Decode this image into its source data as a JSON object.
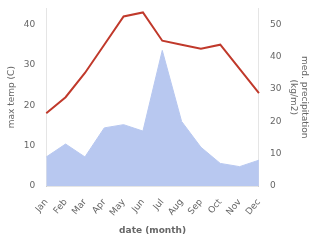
{
  "chart_data": {
    "type": "line",
    "xlabel": "date (month)",
    "ylabel": "max temp (C)",
    "y2label": "med. precipitation\n(kg/m2)",
    "categories": [
      "Jan",
      "Feb",
      "Mar",
      "Apr",
      "May",
      "Jun",
      "Jul",
      "Aug",
      "Sep",
      "Oct",
      "Nov",
      "Dec"
    ],
    "series": [
      {
        "type": "line",
        "color": "#c0392b",
        "values": [
          18,
          22,
          28,
          35,
          42,
          43,
          36,
          35,
          34,
          35,
          29,
          23
        ]
      },
      {
        "type": "area",
        "color": "#b8c8f0",
        "axis": "y2",
        "values": [
          9,
          13,
          9,
          18,
          19,
          17,
          42,
          20,
          12,
          7,
          6,
          8
        ]
      }
    ],
    "ylim": [
      0,
      44
    ],
    "yticks": [
      0,
      10,
      20,
      30,
      40
    ],
    "y2lim": [
      0,
      55
    ],
    "y2ticks": [
      0,
      10,
      20,
      30,
      40,
      50
    ],
    "grid": false
  }
}
